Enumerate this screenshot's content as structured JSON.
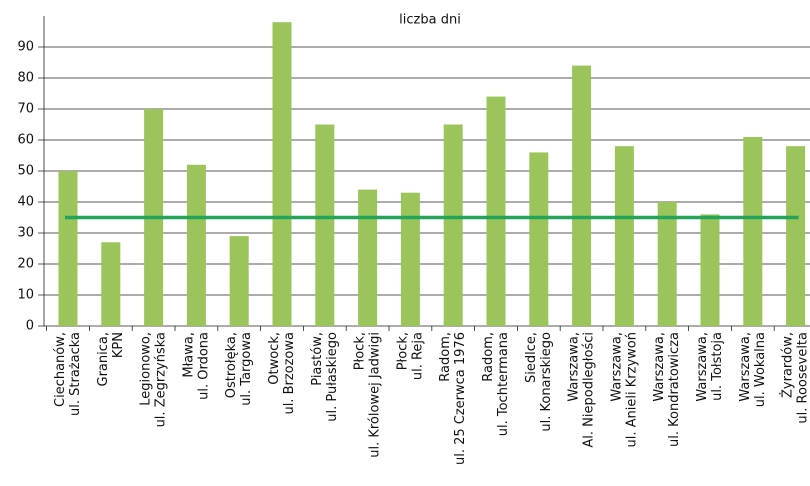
{
  "chart_data": {
    "type": "bar",
    "title": "liczba dni",
    "categories": [
      [
        "Ciechanów,",
        "ul. Strażacka"
      ],
      [
        "Granica,",
        "KPN"
      ],
      [
        "Legionowo,",
        "ul. Zegrzyńska"
      ],
      [
        "Mława,",
        "ul. Ordona"
      ],
      [
        "Ostrołęka,",
        "ul. Targowa"
      ],
      [
        "Otwock,",
        "ul. Brzozowa"
      ],
      [
        "Piastów,",
        "ul. Pułaskiego"
      ],
      [
        "Płock,",
        "ul. Królowej Jadwigi"
      ],
      [
        "Płock,",
        "ul. Reja"
      ],
      [
        "Radom,",
        "ul. 25 Czerwca 1976"
      ],
      [
        "Radom,",
        "ul. Tochtermana"
      ],
      [
        "Siedlce,",
        "ul. Konarskiego"
      ],
      [
        "Warszawa,",
        "Al. Niepodległości"
      ],
      [
        "Warszawa,",
        "ul. Anieli Krzywoń"
      ],
      [
        "Warszawa,",
        "ul. Kondratowicza"
      ],
      [
        "Warszawa,",
        "ul. Tołstoja"
      ],
      [
        "Warszawa,",
        "ul. Wokalna"
      ],
      [
        "Żyrardów,",
        "ul. Roosevelta"
      ]
    ],
    "values": [
      50,
      27,
      70,
      52,
      29,
      98,
      65,
      44,
      43,
      65,
      74,
      56,
      84,
      58,
      40,
      36,
      61,
      58
    ],
    "color": "#9bc45a",
    "reference_line": {
      "value": 35,
      "color": "#22a55b"
    },
    "ylim": [
      0,
      100
    ],
    "yticks": [
      0,
      10,
      20,
      30,
      40,
      50,
      60,
      70,
      80,
      90
    ],
    "grid": true
  }
}
